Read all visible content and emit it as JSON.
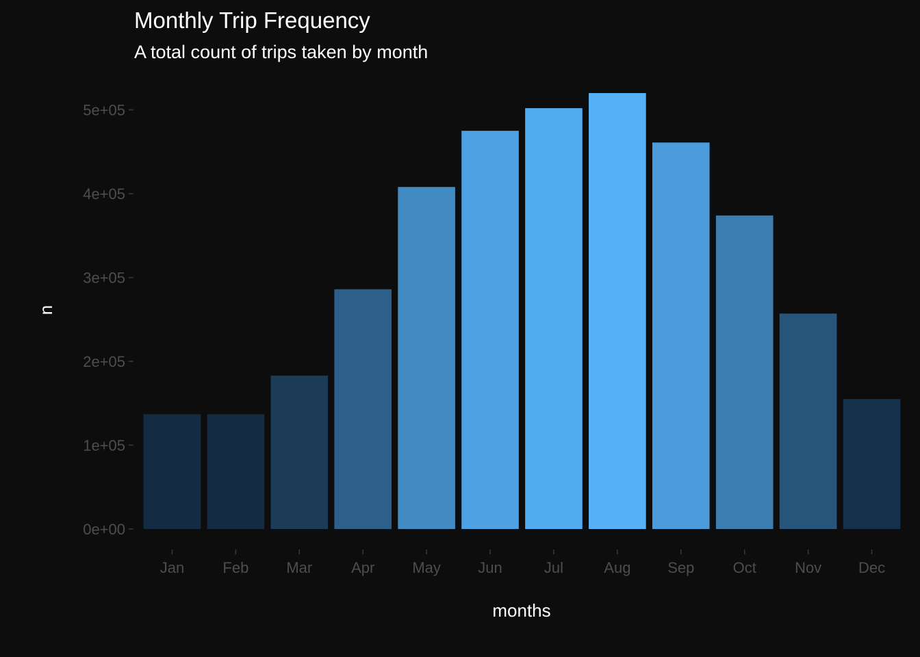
{
  "chart_data": {
    "type": "bar",
    "title": "Monthly Trip Frequency",
    "subtitle": "A total count of trips taken by month",
    "xlabel": "months",
    "ylabel": "n",
    "categories": [
      "Jan",
      "Feb",
      "Mar",
      "Apr",
      "May",
      "Jun",
      "Jul",
      "Aug",
      "Sep",
      "Oct",
      "Nov",
      "Dec"
    ],
    "values": [
      137000,
      137000,
      183000,
      286000,
      408000,
      475000,
      502000,
      520000,
      461000,
      374000,
      257000,
      155000
    ],
    "ylim": [
      0,
      520000
    ],
    "yticks": [
      0,
      100000,
      200000,
      300000,
      400000,
      500000
    ],
    "ytick_labels": [
      "0e+00",
      "1e+05",
      "2e+05",
      "3e+05",
      "4e+05",
      "5e+05"
    ],
    "grid": false,
    "legend": "none",
    "fill_low_color": "#132b43",
    "fill_high_color": "#56b1f7",
    "background_color": "#0d0d0d"
  }
}
